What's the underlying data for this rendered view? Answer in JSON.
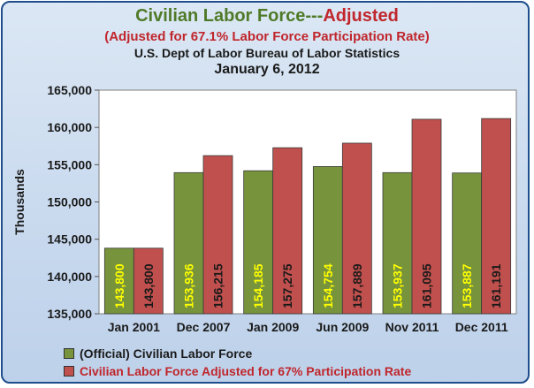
{
  "chart_data": {
    "type": "bar",
    "title_part1": "Civilian Labor Force---",
    "title_part2": "Adjusted",
    "subtitle1": "(Adjusted for 67.1% Labor Force Participation Rate)",
    "subtitle2": "U.S. Dept of Labor Bureau of Labor Statistics",
    "subtitle3": "January 6, 2012",
    "ylabel": "Thousands",
    "xlabel": "",
    "ylim": [
      135000,
      165000
    ],
    "yticks": [
      135000,
      140000,
      145000,
      150000,
      155000,
      160000,
      165000
    ],
    "ytick_labels": [
      "135,000",
      "140,000",
      "145,000",
      "150,000",
      "155,000",
      "160,000",
      "165,000"
    ],
    "categories": [
      "Jan 2001",
      "Dec 2007",
      "Jan 2009",
      "Jun 2009",
      "Nov 2011",
      "Dec 2011"
    ],
    "series": [
      {
        "name": "(Official) Civilian Labor Force",
        "color": "#77933c",
        "label_color": "#ffff00",
        "values": [
          143800,
          153936,
          154185,
          154754,
          153937,
          153887
        ],
        "labels": [
          "143,800",
          "153,936",
          "154,185",
          "154,754",
          "153,937",
          "153,887"
        ]
      },
      {
        "name": "Civilian Labor Force Adjusted for 67% Participation Rate",
        "color": "#c0504d",
        "label_color": "#1a1a1a",
        "values": [
          143800,
          156215,
          157275,
          157889,
          161095,
          161191
        ],
        "labels": [
          "143,800",
          "156,215",
          "157,275",
          "157,889",
          "161,095",
          "161,191"
        ]
      }
    ],
    "grid": false,
    "legend_position": "bottom-left"
  }
}
